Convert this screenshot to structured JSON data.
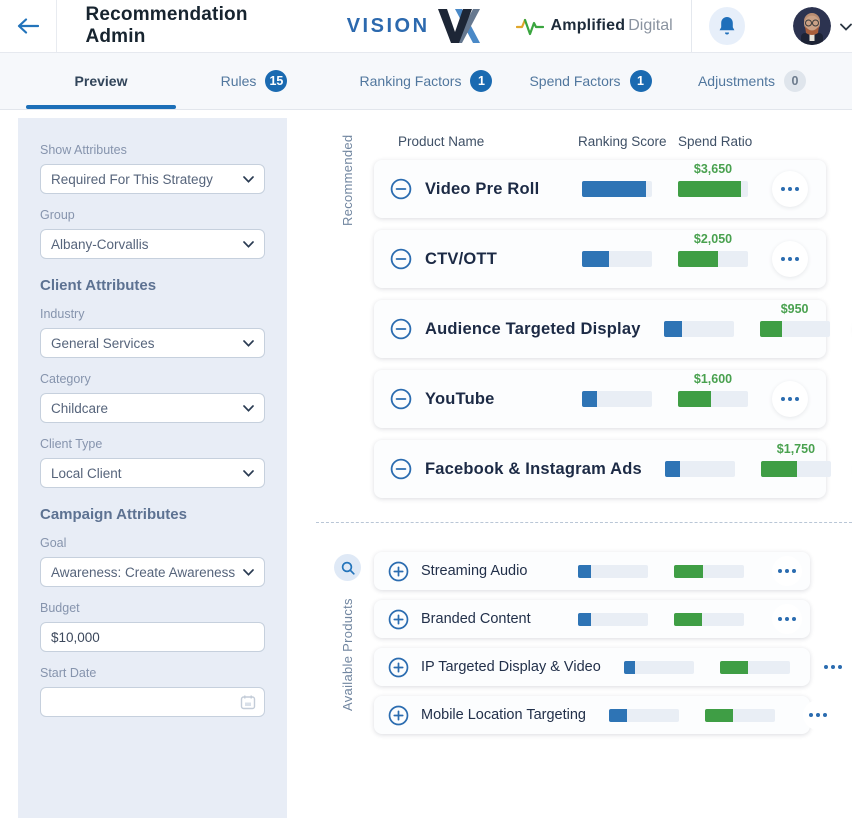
{
  "header": {
    "title": "Recommendation Admin",
    "vision_word": "VISION",
    "amplified_bold": "Amplified",
    "amplified_light": "Digital"
  },
  "tabs": [
    {
      "label": "Preview",
      "badge": null,
      "active": true
    },
    {
      "label": "Rules",
      "badge": "15",
      "active": false
    },
    {
      "label": "Ranking Factors",
      "badge": "1",
      "active": false
    },
    {
      "label": "Spend Factors",
      "badge": "1",
      "active": false
    },
    {
      "label": "Adjustments",
      "badge": "0",
      "active": false,
      "muted": true
    }
  ],
  "sidebar": {
    "show_attributes": {
      "label": "Show Attributes",
      "value": "Required For This Strategy"
    },
    "group": {
      "label": "Group",
      "value": "Albany-Corvallis"
    },
    "client_attributes_heading": "Client Attributes",
    "industry": {
      "label": "Industry",
      "value": "General Services"
    },
    "category": {
      "label": "Category",
      "value": "Childcare"
    },
    "client_type": {
      "label": "Client Type",
      "value": "Local Client"
    },
    "campaign_attributes_heading": "Campaign Attributes",
    "goal": {
      "label": "Goal",
      "value": "Awareness: Create Awareness"
    },
    "budget": {
      "label": "Budget",
      "value": "$10,000"
    },
    "start_date": {
      "label": "Start Date",
      "value": ""
    }
  },
  "main": {
    "columns": [
      "Product Name",
      "Ranking Score",
      "Spend Ratio"
    ],
    "sections": {
      "recommended": "Recommended",
      "available": "Available Products"
    },
    "recommended_products": [
      {
        "name": "Video Pre Roll",
        "ranking": 0.92,
        "spend": 0.9,
        "amount": "$3,650"
      },
      {
        "name": "CTV/OTT",
        "ranking": 0.38,
        "spend": 0.57,
        "amount": "$2,050"
      },
      {
        "name": "Audience Targeted Display",
        "ranking": 0.26,
        "spend": 0.31,
        "amount": "$950"
      },
      {
        "name": "YouTube",
        "ranking": 0.21,
        "spend": 0.47,
        "amount": "$1,600"
      },
      {
        "name": "Facebook & Instagram Ads",
        "ranking": 0.21,
        "spend": 0.51,
        "amount": "$1,750"
      }
    ],
    "available_products": [
      {
        "name": "Streaming Audio",
        "ranking": 0.19,
        "spend": 0.42
      },
      {
        "name": "Branded Content",
        "ranking": 0.19,
        "spend": 0.4
      },
      {
        "name": "IP Targeted Display & Video",
        "ranking": 0.16,
        "spend": 0.4
      },
      {
        "name": "Mobile Location Targeting",
        "ranking": 0.25,
        "spend": 0.4
      }
    ]
  },
  "colors": {
    "accent_blue": "#1c6fb8",
    "bar_blue": "#2e74b5",
    "bar_green": "#3f9e45",
    "amount_green": "#49a14f",
    "sidebar_bg": "#e8edf6"
  }
}
